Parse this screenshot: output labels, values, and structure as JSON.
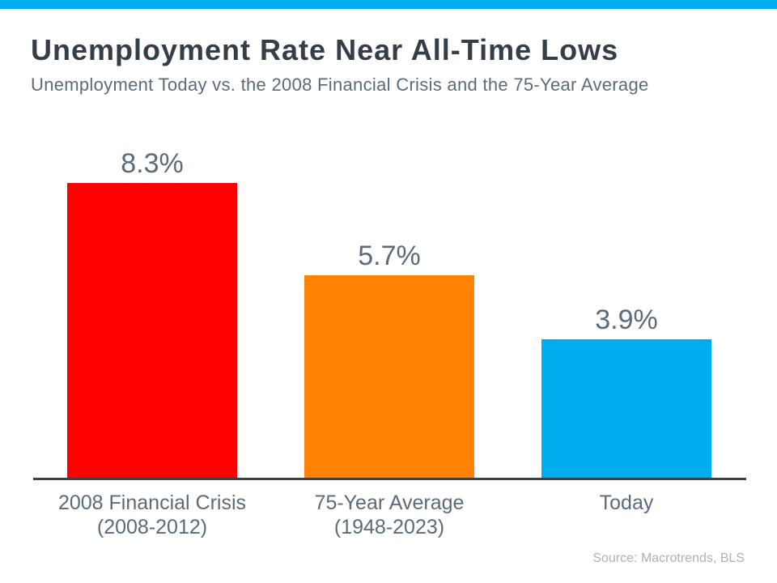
{
  "header": {
    "title": "Unemployment Rate Near All-Time Lows",
    "subtitle": "Unemployment Today vs. the 2008 Financial Crisis and the 75-Year Average"
  },
  "chart_data": {
    "type": "bar",
    "title": "Unemployment Rate Near All-Time Lows",
    "subtitle": "Unemployment Today vs. the 2008 Financial Crisis and the 75-Year Average",
    "categories": [
      "2008 Financial Crisis",
      "75-Year Average",
      "Today"
    ],
    "category_sublabels": [
      "(2008-2012)",
      "(1948-2023)",
      ""
    ],
    "values": [
      8.3,
      5.7,
      3.9
    ],
    "value_labels": [
      "8.3%",
      "5.7%",
      "3.9%"
    ],
    "colors": [
      "#FF0000",
      "#FF8300",
      "#00AEEF"
    ],
    "unit": "%",
    "ylim": [
      0,
      9
    ],
    "grid": false,
    "legend": false,
    "xlabel": "",
    "ylabel": ""
  },
  "footer": {
    "source": "Source: Macrotrends, BLS"
  },
  "theme": {
    "accent_bar_color": "#00AEEF",
    "title_color": "#333E48",
    "label_color": "#5A6B7A",
    "axis_line_color": "#3A4147",
    "source_color": "#A9B3BB"
  }
}
